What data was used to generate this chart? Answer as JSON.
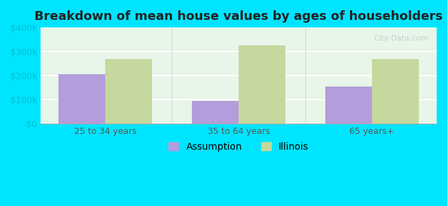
{
  "title": "Breakdown of mean house values by ages of householders",
  "categories": [
    "25 to 34 years",
    "35 to 64 years",
    "65 years+"
  ],
  "assumption_values": [
    205000,
    95000,
    155000
  ],
  "illinois_values": [
    270000,
    325000,
    268000
  ],
  "assumption_color": "#b39ddb",
  "illinois_color": "#c5d89d",
  "background_outer": "#00e5ff",
  "background_inner": "#e8f5e9",
  "ylim": [
    0,
    400000
  ],
  "yticks": [
    0,
    100000,
    200000,
    300000,
    400000
  ],
  "ytick_labels": [
    "$0",
    "$100k",
    "$200k",
    "$300k",
    "$400k"
  ],
  "legend_labels": [
    "Assumption",
    "Illinois"
  ],
  "bar_width": 0.35,
  "grid_color": "#ffffff",
  "tick_color": "#00bcd4"
}
